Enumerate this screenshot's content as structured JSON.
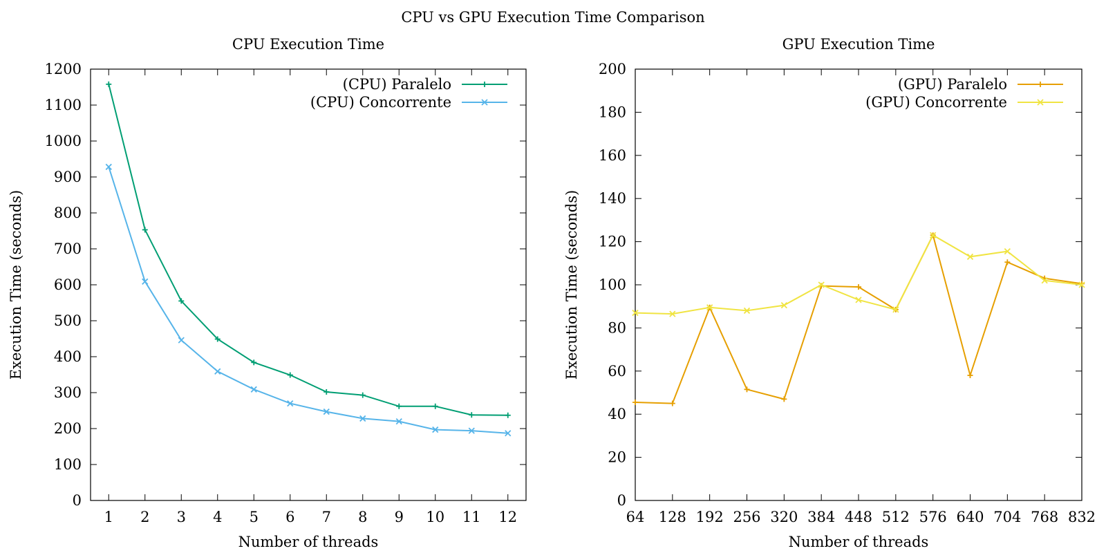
{
  "suptitle": "CPU vs GPU Execution Time Comparison",
  "chart_data": [
    {
      "type": "line",
      "title": "CPU Execution Time",
      "xlabel": "Number of threads",
      "ylabel": "Execution Time (seconds)",
      "x": [
        1,
        2,
        3,
        4,
        5,
        6,
        7,
        8,
        9,
        10,
        11,
        12
      ],
      "xticks": [
        1,
        2,
        3,
        4,
        5,
        6,
        7,
        8,
        9,
        10,
        11,
        12
      ],
      "xlim": [
        0.5,
        12.5
      ],
      "yticks": [
        0,
        100,
        200,
        300,
        400,
        500,
        600,
        700,
        800,
        900,
        1000,
        1100,
        1200
      ],
      "ylim": [
        0,
        1200
      ],
      "legend_position": "top-right",
      "series": [
        {
          "name": "(CPU) Paralelo",
          "color": "#009e73",
          "marker": "plus",
          "values": [
            1158,
            753,
            555,
            449,
            384,
            349,
            302,
            293,
            262,
            262,
            238,
            237
          ]
        },
        {
          "name": "(CPU) Concorrente",
          "color": "#56b4e9",
          "marker": "cross",
          "values": [
            928,
            609,
            446,
            359,
            309,
            270,
            247,
            228,
            220,
            197,
            194,
            187
          ]
        }
      ]
    },
    {
      "type": "line",
      "title": "GPU Execution Time",
      "xlabel": "Number of threads",
      "ylabel": "Execution Time (seconds)",
      "x": [
        64,
        128,
        192,
        256,
        320,
        384,
        448,
        512,
        576,
        640,
        704,
        768,
        832
      ],
      "xticks": [
        64,
        128,
        192,
        256,
        320,
        384,
        448,
        512,
        576,
        640,
        704,
        768,
        832
      ],
      "xlim": [
        64,
        832
      ],
      "yticks": [
        0,
        20,
        40,
        60,
        80,
        100,
        120,
        140,
        160,
        180,
        200
      ],
      "ylim": [
        0,
        200
      ],
      "legend_position": "top-right",
      "series": [
        {
          "name": "(GPU) Paralelo",
          "color": "#e69f00",
          "marker": "plus",
          "values": [
            45.5,
            45,
            89.5,
            51.5,
            47,
            99.5,
            99,
            88.5,
            123,
            58,
            110.5,
            103,
            100.5
          ]
        },
        {
          "name": "(GPU) Concorrente",
          "color": "#f0e442",
          "marker": "cross",
          "values": [
            87,
            86.5,
            89.5,
            88,
            90.5,
            100,
            93,
            88.5,
            123,
            113,
            115.5,
            102,
            100
          ]
        }
      ]
    }
  ]
}
